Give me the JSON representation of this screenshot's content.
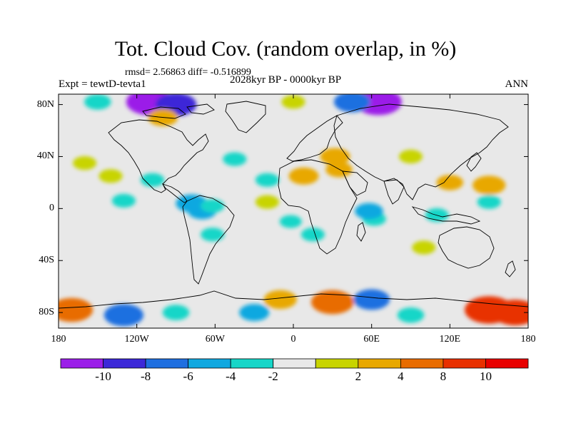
{
  "title": "Tot. Cloud Cov. (random overlap, in %)",
  "stats": "rmsd= 2.56863 diff= -0.516899",
  "experiment": "Expt = tewtD-tevta1",
  "period": "2028kyr BP - 0000kyr BP",
  "season": "ANN",
  "map": {
    "lon_range": [
      -180,
      180
    ],
    "lat_range": [
      -90,
      90
    ],
    "background_color": "#e8e8e8",
    "lat_ticks": [
      {
        "lat": 80,
        "label": "80N"
      },
      {
        "lat": 40,
        "label": "40N"
      },
      {
        "lat": 0,
        "label": "0"
      },
      {
        "lat": -40,
        "label": "40S"
      },
      {
        "lat": -80,
        "label": "80S"
      }
    ],
    "lon_ticks": [
      {
        "lon": -180,
        "label": "180"
      },
      {
        "lon": -120,
        "label": "120W"
      },
      {
        "lon": -60,
        "label": "60W"
      },
      {
        "lon": 0,
        "label": "0"
      },
      {
        "lon": 60,
        "label": "60E"
      },
      {
        "lon": 120,
        "label": "120E"
      },
      {
        "lon": 180,
        "label": "180"
      }
    ]
  },
  "colorbar": {
    "colors": [
      "#9b1fe8",
      "#3c28d8",
      "#1f6fe0",
      "#10a8e0",
      "#17d6c8",
      "#e8e8e8",
      "#c8d400",
      "#e8a800",
      "#e86c00",
      "#e83000",
      "#e80000"
    ],
    "labels": [
      "-10",
      "-8",
      "-6",
      "-4",
      "-2",
      "2",
      "4",
      "8",
      "10"
    ]
  },
  "chart_data": {
    "type": "heatmap",
    "title": "Tot. Cloud Cov. (random overlap, in %)",
    "levels": [
      -10,
      -8,
      -6,
      -4,
      -2,
      2,
      4,
      8,
      10
    ],
    "regions": [
      {
        "lon": -78,
        "lat": 4,
        "value": -5.5
      },
      {
        "lon": -70,
        "lat": -2,
        "value": -4.5
      },
      {
        "lon": -62,
        "lat": 2,
        "value": -3
      },
      {
        "lon": -62,
        "lat": -20,
        "value": -3
      },
      {
        "lon": -108,
        "lat": 22,
        "value": -3
      },
      {
        "lon": -130,
        "lat": 6,
        "value": -3
      },
      {
        "lon": -45,
        "lat": 38,
        "value": -3
      },
      {
        "lon": -20,
        "lat": 22,
        "value": -3
      },
      {
        "lon": -2,
        "lat": -10,
        "value": -2.5
      },
      {
        "lon": 15,
        "lat": -20,
        "value": -3
      },
      {
        "lon": 62,
        "lat": -8,
        "value": -3
      },
      {
        "lon": 58,
        "lat": -2,
        "value": -4.5
      },
      {
        "lon": 110,
        "lat": -5,
        "value": -3
      },
      {
        "lon": 150,
        "lat": 5,
        "value": -3
      },
      {
        "lon": -110,
        "lat": 82,
        "value": -10.5
      },
      {
        "lon": -90,
        "lat": 80,
        "value": -8.5
      },
      {
        "lon": 65,
        "lat": 82,
        "value": -10.5
      },
      {
        "lon": 45,
        "lat": 82,
        "value": -7
      },
      {
        "lon": -150,
        "lat": 82,
        "value": -4
      },
      {
        "lon": -100,
        "lat": 70,
        "value": 5
      },
      {
        "lon": 0,
        "lat": 82,
        "value": 3
      },
      {
        "lon": 32,
        "lat": 40,
        "value": 5
      },
      {
        "lon": 8,
        "lat": 25,
        "value": 5
      },
      {
        "lon": 35,
        "lat": 30,
        "value": 4
      },
      {
        "lon": 90,
        "lat": 40,
        "value": 3
      },
      {
        "lon": 150,
        "lat": 18,
        "value": 6
      },
      {
        "lon": 120,
        "lat": 20,
        "value": 4
      },
      {
        "lon": -20,
        "lat": 5,
        "value": 3
      },
      {
        "lon": -140,
        "lat": 25,
        "value": 3
      },
      {
        "lon": -160,
        "lat": 35,
        "value": 3
      },
      {
        "lon": 100,
        "lat": -30,
        "value": 3
      },
      {
        "lon": -10,
        "lat": -70,
        "value": 6
      },
      {
        "lon": 30,
        "lat": -72,
        "value": 9
      },
      {
        "lon": 150,
        "lat": -78,
        "value": 11
      },
      {
        "lon": 170,
        "lat": -80,
        "value": 10
      },
      {
        "lon": -170,
        "lat": -78,
        "value": 9
      },
      {
        "lon": -130,
        "lat": -82,
        "value": -8
      },
      {
        "lon": -90,
        "lat": -80,
        "value": -4
      },
      {
        "lon": -30,
        "lat": -80,
        "value": -5
      },
      {
        "lon": 90,
        "lat": -82,
        "value": -4
      },
      {
        "lon": 60,
        "lat": -70,
        "value": -7
      }
    ]
  }
}
